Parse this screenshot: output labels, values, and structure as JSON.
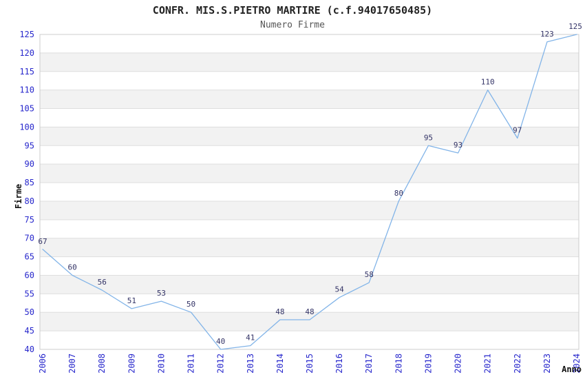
{
  "chart_data": {
    "type": "line",
    "title": "CONFR. MIS.S.PIETRO MARTIRE (c.f.94017650485)",
    "subtitle": "Numero Firme",
    "xlabel": "Anno",
    "ylabel": "Firme",
    "categories": [
      "2006",
      "2007",
      "2008",
      "2009",
      "2010",
      "2011",
      "2012",
      "2013",
      "2014",
      "2015",
      "2016",
      "2017",
      "2018",
      "2019",
      "2020",
      "2021",
      "2022",
      "2023",
      "2024"
    ],
    "series": [
      {
        "name": "Numero Firme",
        "values": [
          67,
          60,
          56,
          51,
          53,
          50,
          40,
          41,
          48,
          48,
          54,
          58,
          80,
          95,
          93,
          110,
          97,
          123,
          125
        ]
      }
    ],
    "ylim": [
      40,
      125
    ],
    "ytick_step": 5,
    "grid": true,
    "show_data_labels": true,
    "legend_position": "none",
    "colors": {
      "line": "#82b4e8",
      "tick_label": "#2727cc",
      "data_label": "#333366",
      "grid_line": "#dedede",
      "band_fill": "#f2f2f2",
      "plot_border": "#cccccc",
      "title": "#222222",
      "subtitle": "#555555",
      "axis_title": "#111111",
      "background": "#ffffff"
    }
  }
}
